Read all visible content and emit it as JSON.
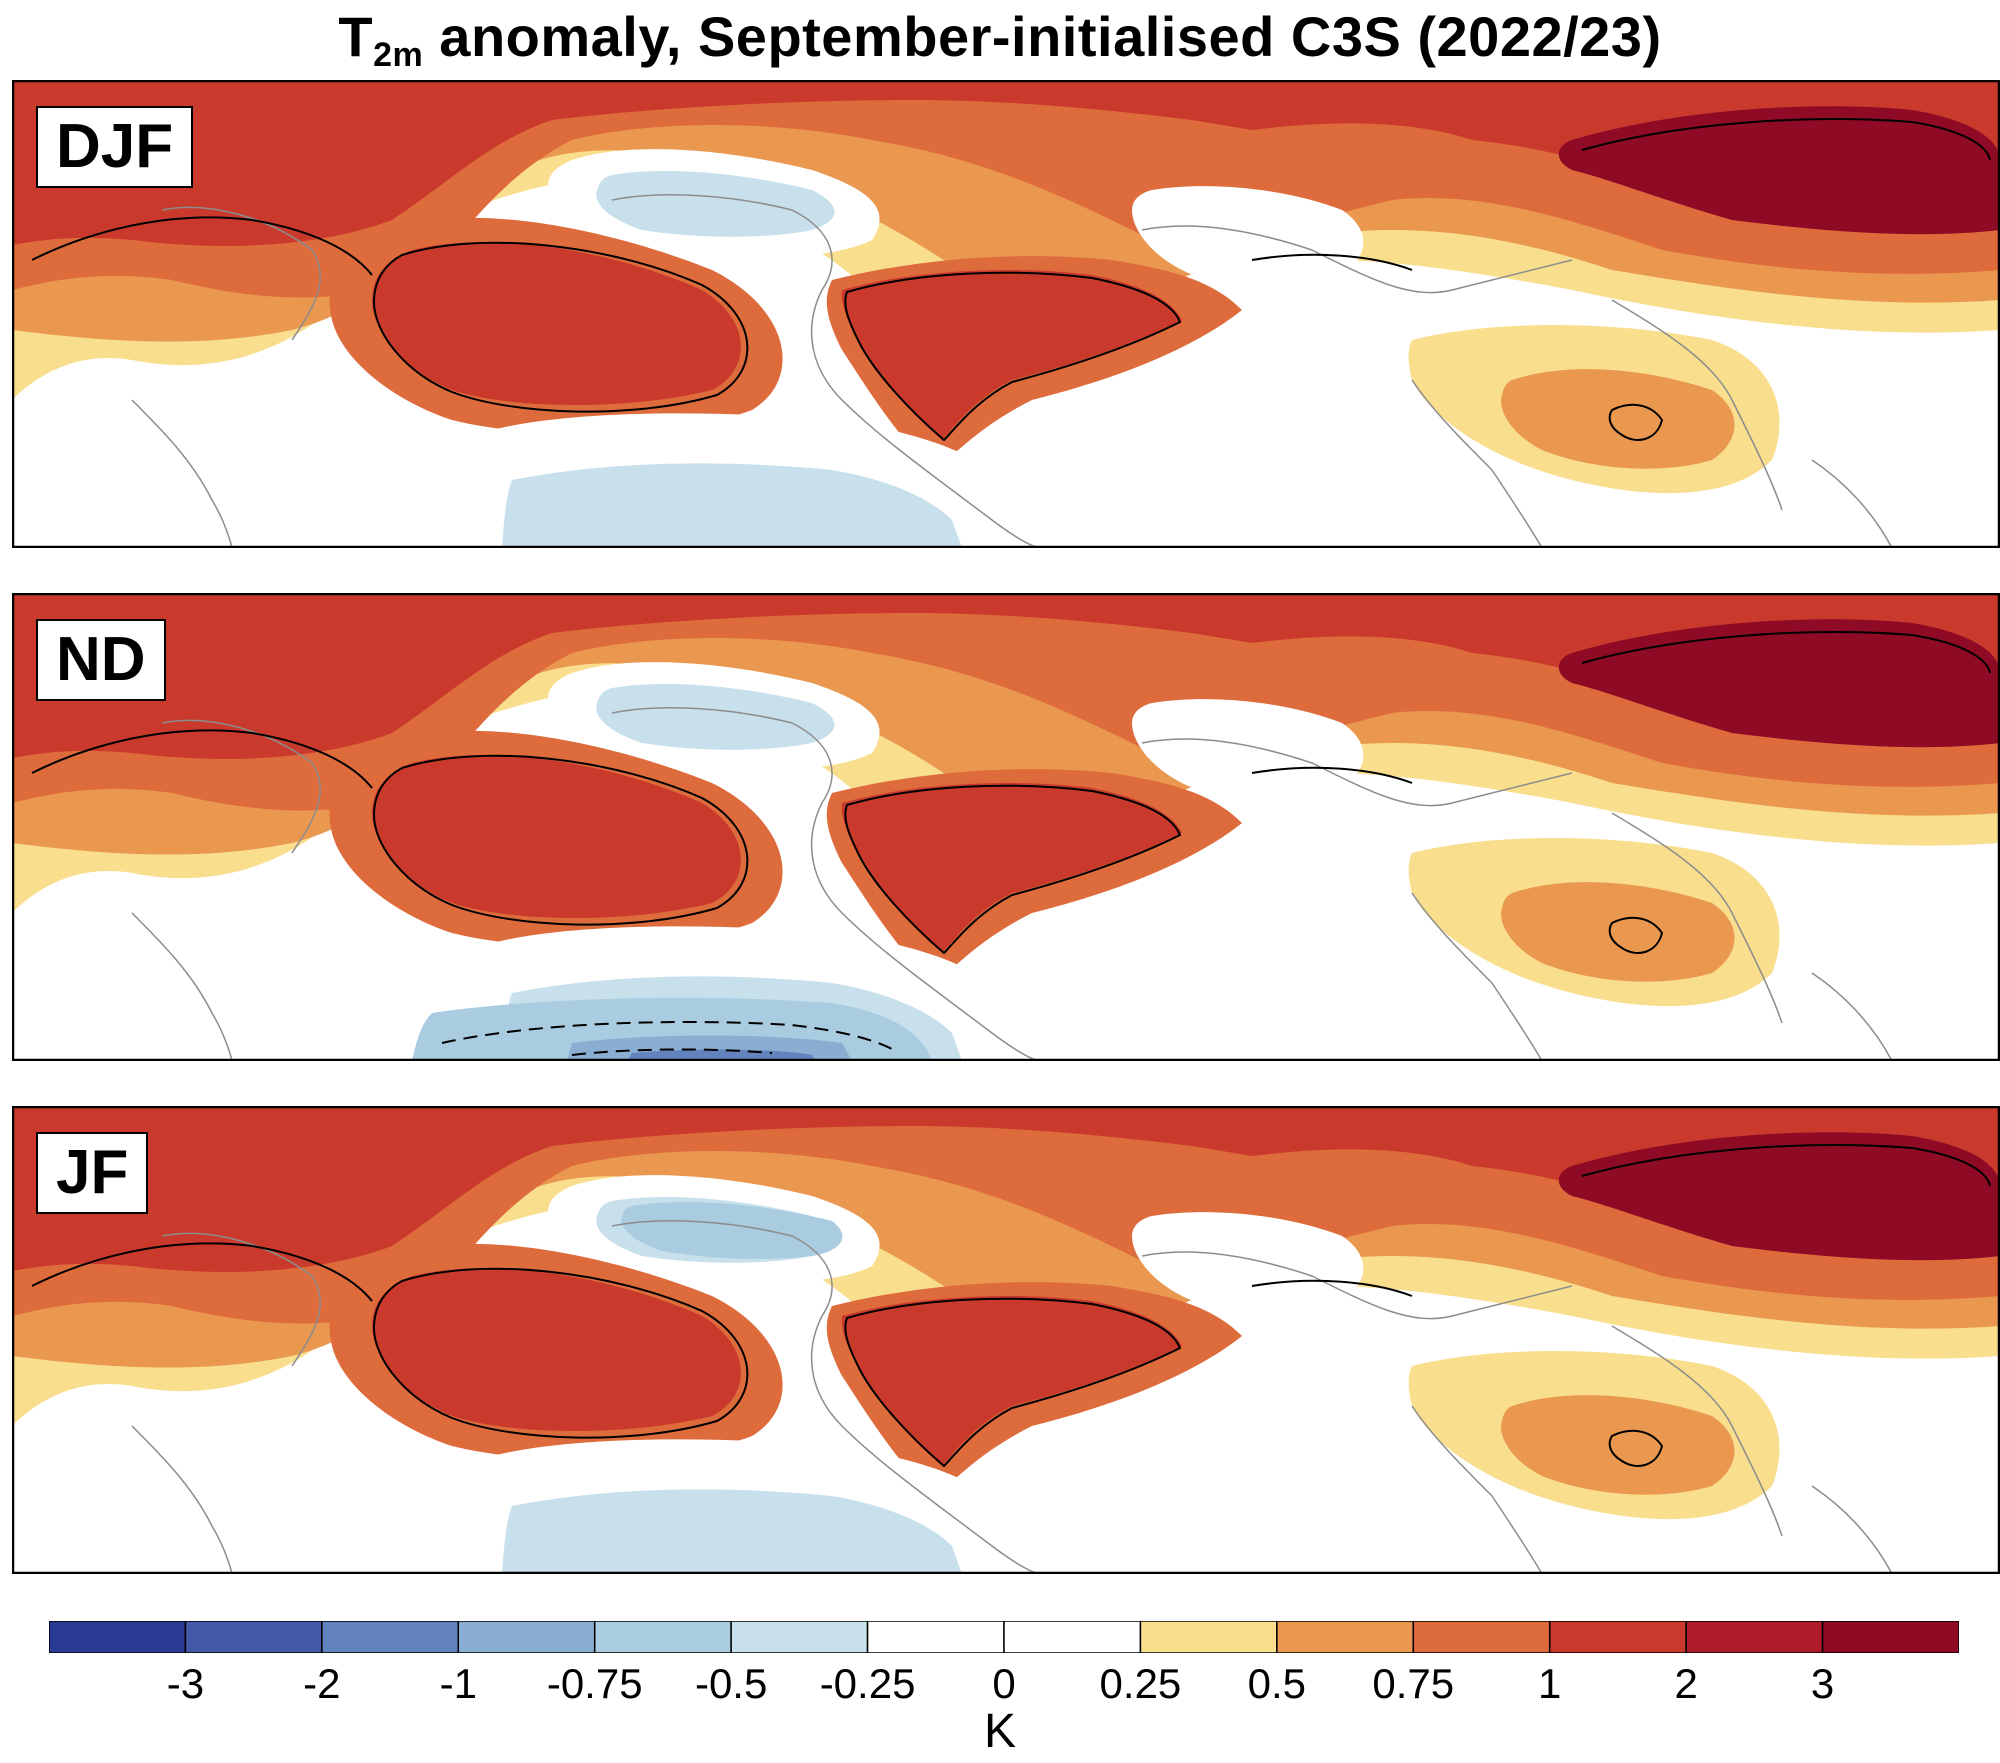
{
  "title": {
    "var": "T",
    "sub": "2m",
    "rest": " anomaly, September-initialised C3S (2022/23)"
  },
  "panels": [
    {
      "label": "DJF",
      "contour_lines": []
    },
    {
      "label": "ND",
      "contour_lines": []
    },
    {
      "label": "JF",
      "contour_lines": []
    }
  ],
  "colorbar": {
    "colors": [
      "#2b3a93",
      "#4459a8",
      "#6283bd",
      "#8aaed1",
      "#a9cce1",
      "#c7e0ec",
      "#ffffff",
      "#ffffff",
      "#f9de8e",
      "#ea9850",
      "#de6b3c",
      "#c93a2c",
      "#ae1b2a",
      "#8e0a25"
    ],
    "labels": [
      "-3",
      "-2",
      "-1",
      "-0.75",
      "-0.5",
      "-0.25",
      "0",
      "0.25",
      "0.5",
      "0.75",
      "1",
      "2",
      "3"
    ],
    "unit": "K"
  },
  "map_colors": {
    "very_hot": "#8e0a25",
    "hot": "#c93a2c",
    "warm": "#de6b3c",
    "mild": "#ea9850",
    "slight": "#f9de8e",
    "neutral": "#ffffff",
    "cool": "#c7e0ec",
    "cold": "#a9cce1",
    "colder": "#8aaed1",
    "coldest": "#6283bd",
    "coast": "#8c8c8c",
    "contour": "#000000"
  }
}
